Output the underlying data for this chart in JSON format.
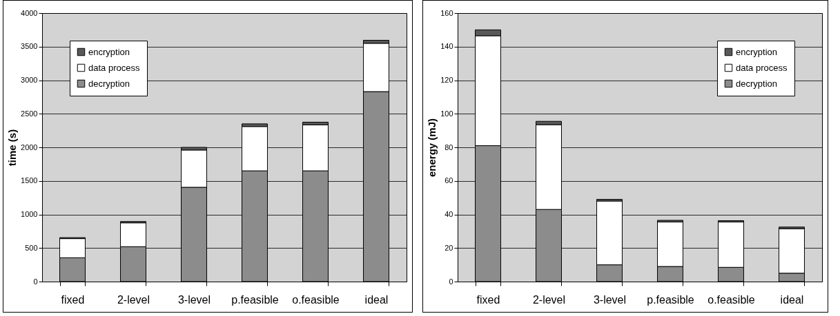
{
  "chart_data": [
    {
      "type": "bar",
      "stacked": true,
      "ylabel": "time (s)",
      "categories": [
        "fixed",
        "2-level",
        "3-level",
        "p.feasible",
        "o.feasible",
        "ideal"
      ],
      "ylim": [
        0,
        4000
      ],
      "yticks": [
        0,
        500,
        1000,
        1500,
        2000,
        2500,
        3000,
        3500,
        4000
      ],
      "grid": "y",
      "legend": "top left",
      "series": [
        {
          "name": "decryption",
          "color": "#8c8c8c",
          "values": [
            355,
            520,
            1405,
            1650,
            1650,
            2830
          ]
        },
        {
          "name": "data process",
          "color": "#ffffff",
          "values": [
            285,
            355,
            555,
            660,
            685,
            720
          ]
        },
        {
          "name": "encryption",
          "color": "#595959",
          "values": [
            15,
            20,
            40,
            40,
            40,
            45
          ]
        }
      ]
    },
    {
      "type": "bar",
      "stacked": true,
      "ylabel": "energy (mJ)",
      "categories": [
        "fixed",
        "2-level",
        "3-level",
        "p.feasible",
        "o.feasible",
        "ideal"
      ],
      "ylim": [
        0,
        160
      ],
      "yticks": [
        0,
        20,
        40,
        60,
        80,
        100,
        120,
        140,
        160
      ],
      "grid": "y",
      "legend": "top right",
      "series": [
        {
          "name": "decryption",
          "color": "#8c8c8c",
          "values": [
            81,
            43,
            10,
            9,
            8.5,
            5
          ]
        },
        {
          "name": "data process",
          "color": "#ffffff",
          "values": [
            65.5,
            50.5,
            38,
            26.5,
            27,
            26.5
          ]
        },
        {
          "name": "encryption",
          "color": "#595959",
          "values": [
            3.5,
            2,
            1,
            1,
            0.8,
            1
          ]
        }
      ]
    }
  ]
}
